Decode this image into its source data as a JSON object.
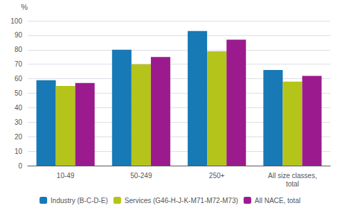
{
  "chart_data": {
    "type": "bar",
    "ylabel": "%",
    "categories": [
      "10-49",
      "50-249",
      "250+",
      "All size classes,\ntotal"
    ],
    "series": [
      {
        "name": "Industry (B-C-D-E)",
        "color": "#1779b5",
        "values": [
          59,
          80,
          93,
          66
        ]
      },
      {
        "name": "Services (G46-H-J-K-M71-M72-M73)",
        "color": "#b5c41a",
        "values": [
          55,
          70,
          79,
          58
        ]
      },
      {
        "name": "All NACE, total",
        "color": "#9b1b8e",
        "values": [
          57,
          75,
          87,
          62
        ]
      }
    ],
    "ylim": [
      0,
      100
    ],
    "yticks": [
      0,
      10,
      20,
      30,
      40,
      50,
      60,
      70,
      80,
      90,
      100
    ],
    "grid": true,
    "legend": "bottom"
  }
}
